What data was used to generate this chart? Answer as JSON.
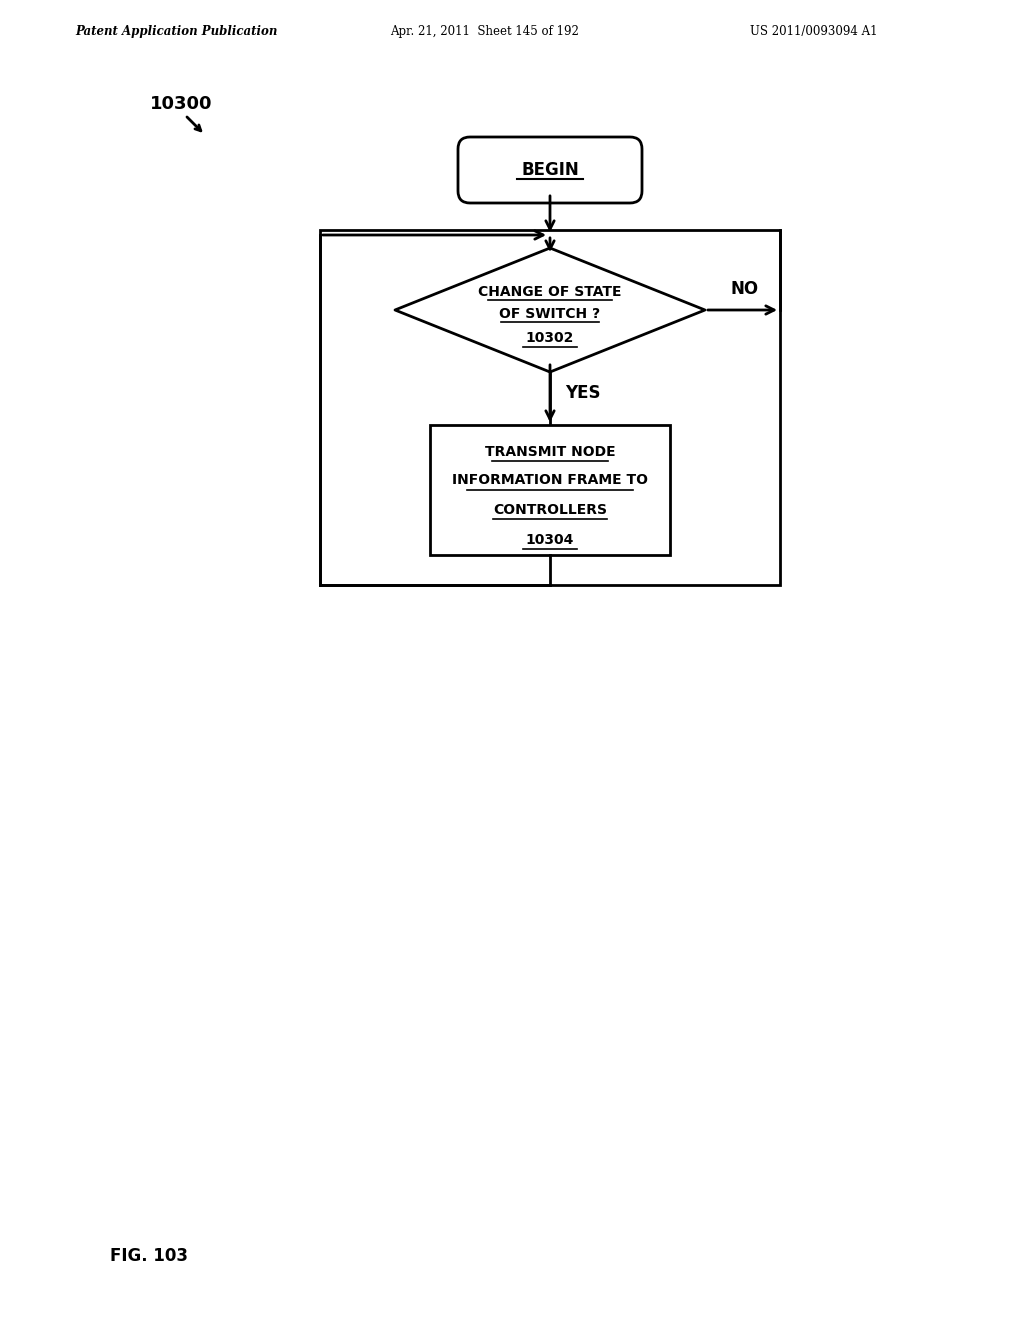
{
  "bg_color": "#ffffff",
  "header_left": "Patent Application Publication",
  "header_mid": "Apr. 21, 2011  Sheet 145 of 192",
  "header_right": "US 2011/0093094 A1",
  "fig_label": "10300",
  "fig_number": "FIG. 103",
  "begin_text": "BEGIN",
  "diamond_line1": "CHANGE OF STATE",
  "diamond_line2": "OF SWITCH ?",
  "diamond_ref": "10302",
  "no_label": "NO",
  "yes_label": "YES",
  "box_line1": "TRANSMIT NODE",
  "box_line2": "INFORMATION FRAME TO",
  "box_line3": "CONTROLLERS",
  "box_ref": "10304",
  "text_color": "#000000",
  "line_color": "#000000"
}
